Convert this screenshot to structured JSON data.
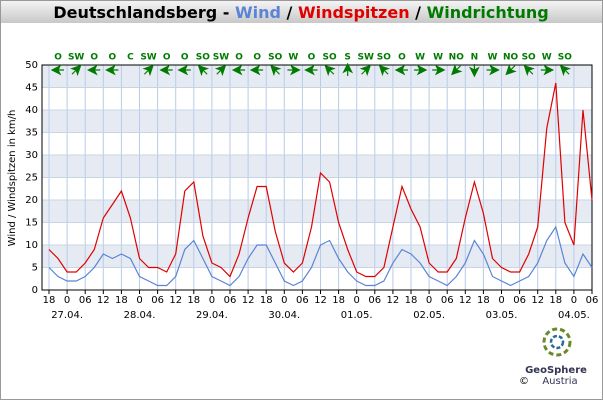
{
  "chart_data": {
    "type": "line",
    "title_prefix": "Deutschlandsberg - ",
    "separator": " / ",
    "y_label": "Wind / Windspitzen in km/h",
    "categories": [
      "18",
      null,
      "0",
      null,
      "06",
      null,
      "12",
      null,
      "18",
      null,
      "0",
      null,
      "06",
      null,
      "12",
      null,
      "18",
      null,
      "0",
      null,
      "06",
      null,
      "12",
      null,
      "18",
      null,
      "0",
      null,
      "06",
      null,
      "12",
      null,
      "18",
      null,
      "0",
      null,
      "06",
      null,
      "12",
      null,
      "18",
      null,
      "0",
      null,
      "06",
      null,
      "12",
      null,
      "18",
      null,
      "0",
      null,
      "06",
      null,
      "12",
      null,
      "18",
      null,
      "0",
      null,
      "06"
    ],
    "dates": [
      null,
      null,
      "27.04.",
      null,
      null,
      null,
      null,
      null,
      null,
      null,
      "28.04.",
      null,
      null,
      null,
      null,
      null,
      null,
      null,
      "29.04.",
      null,
      null,
      null,
      null,
      null,
      null,
      null,
      "30.04.",
      null,
      null,
      null,
      null,
      null,
      null,
      null,
      "01.05.",
      null,
      null,
      null,
      null,
      null,
      null,
      null,
      "02.05.",
      null,
      null,
      null,
      null,
      null,
      null,
      null,
      "03.05.",
      null,
      null,
      null,
      null,
      null,
      null,
      null,
      "04.05.",
      null,
      null
    ],
    "series": [
      {
        "name": "Wind",
        "color": "#5b84d6",
        "values": [
          5,
          3,
          2,
          2,
          3,
          5,
          8,
          7,
          8,
          7,
          3,
          2,
          1,
          1,
          3,
          9,
          11,
          7,
          3,
          2,
          1,
          3,
          7,
          10,
          10,
          6,
          2,
          1,
          2,
          5,
          10,
          11,
          7,
          4,
          2,
          1,
          1,
          2,
          6,
          9,
          8,
          6,
          3,
          2,
          1,
          3,
          6,
          11,
          8,
          3,
          2,
          1,
          2,
          3,
          6,
          11,
          14,
          6,
          3,
          8,
          5
        ]
      },
      {
        "name": "Windspitzen",
        "color": "#e00000",
        "values": [
          9,
          7,
          4,
          4,
          6,
          9,
          16,
          19,
          22,
          16,
          7,
          5,
          5,
          4,
          8,
          22,
          24,
          12,
          6,
          5,
          3,
          8,
          16,
          23,
          23,
          13,
          6,
          4,
          6,
          14,
          26,
          24,
          15,
          9,
          4,
          3,
          3,
          5,
          14,
          23,
          18,
          14,
          6,
          4,
          4,
          7,
          16,
          24,
          17,
          7,
          5,
          4,
          4,
          8,
          14,
          36,
          46,
          15,
          10,
          40,
          20
        ]
      }
    ],
    "direction": {
      "name": "Windrichtung",
      "color": "#007a00",
      "values": [
        null,
        "O",
        null,
        "SW",
        null,
        "O",
        null,
        "O",
        null,
        "C",
        null,
        "SW",
        null,
        "O",
        null,
        "O",
        null,
        "SO",
        null,
        "SW",
        null,
        "O",
        null,
        "O",
        null,
        "SO",
        null,
        "W",
        null,
        "O",
        null,
        "SO",
        null,
        "S",
        null,
        "SW",
        null,
        "SO",
        null,
        "O",
        null,
        "W",
        null,
        "W",
        null,
        "NO",
        null,
        "N",
        null,
        "W",
        null,
        "NO",
        null,
        "SO",
        null,
        "W",
        null,
        "SO",
        null,
        null,
        null
      ]
    },
    "ylim": [
      0,
      50
    ],
    "yticks": [
      0,
      5,
      10,
      15,
      20,
      25,
      30,
      35,
      40,
      45,
      50
    ],
    "grid": true,
    "logo": {
      "name": "GeoSphere",
      "sub": "Austria",
      "copyright": "©"
    }
  }
}
